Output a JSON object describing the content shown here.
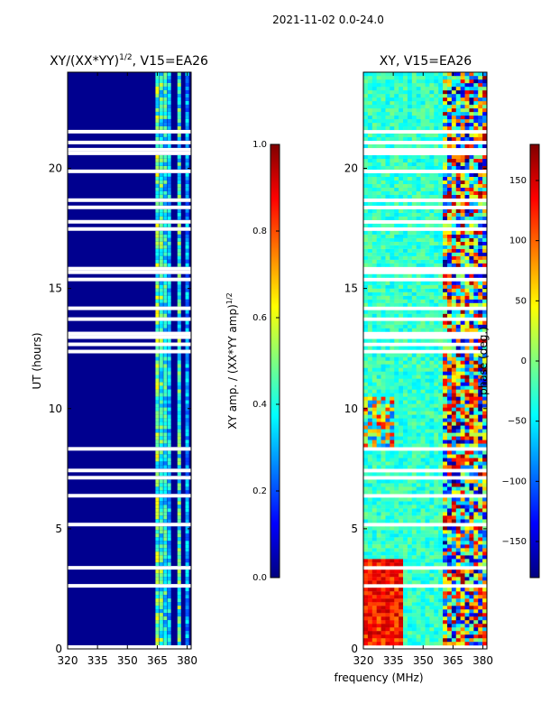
{
  "figure": {
    "suptitle": "2021-11-02 0.0-24.0",
    "shared_xlabel": "frequency (MHz)"
  },
  "colors": {
    "background_blue": "#00008f",
    "blank_row": "#ffffff",
    "jet": [
      "#00007f",
      "#0000ff",
      "#007fff",
      "#00ffff",
      "#7fff7f",
      "#ffff00",
      "#ff7f00",
      "#ff0000",
      "#7f0000"
    ]
  },
  "chart_data": [
    {
      "type": "heatmap",
      "title_main": "XY/(XX*YY)",
      "title_exp": "1/2",
      "title_suffix": ", V15=EA26",
      "xlabel": "",
      "ylabel": "UT (hours)",
      "xlim": [
        320,
        382
      ],
      "ylim": [
        0,
        24
      ],
      "xticks": [
        320,
        335,
        350,
        365,
        380
      ],
      "yticks": [
        0,
        5,
        10,
        15,
        20
      ],
      "colorbar": {
        "label_main": "XY amp. / (XX*YY amp)",
        "label_exp": "1/2",
        "range": [
          0.0,
          1.0
        ],
        "ticks": [
          0.0,
          0.2,
          0.4,
          0.6,
          0.8,
          1.0
        ],
        "tick_labels": [
          "0.0",
          "0.2",
          "0.4",
          "0.6",
          "0.8",
          "1.0"
        ]
      },
      "description_values": {
        "background_level": 0.02,
        "band_freqs_mhz": [
          365,
          367,
          369,
          371,
          376,
          380
        ],
        "band_levels": [
          0.5,
          0.45,
          0.4,
          0.35,
          0.45,
          0.3
        ]
      }
    },
    {
      "type": "heatmap",
      "title_main": "XY, V15=EA26",
      "xlabel": "frequency (MHz)",
      "ylabel": "",
      "xlim": [
        320,
        382
      ],
      "ylim": [
        0,
        24
      ],
      "xticks": [
        320,
        335,
        350,
        365,
        380
      ],
      "yticks": [
        0,
        5,
        10,
        15,
        20
      ],
      "colorbar": {
        "label_main": "phase (deg.)",
        "range": [
          -180,
          180
        ],
        "ticks": [
          -150,
          -100,
          -50,
          0,
          50,
          100,
          150
        ],
        "tick_labels": [
          "−150",
          "−100",
          "−50",
          "0",
          "50",
          "100",
          "150"
        ]
      }
    }
  ]
}
